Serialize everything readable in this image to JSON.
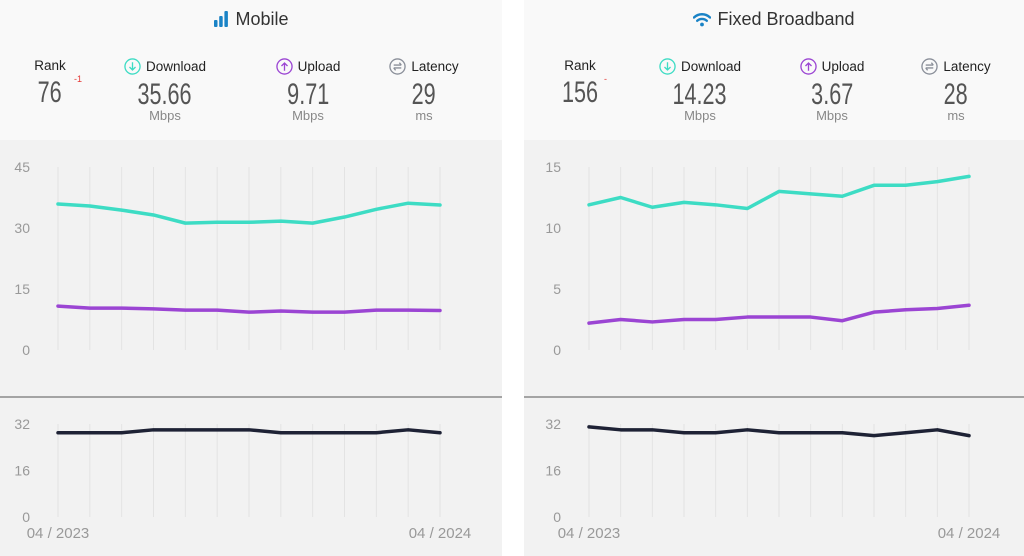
{
  "colors": {
    "download": "#3ddcc4",
    "upload": "#9b45d3",
    "latency": "#1e2235",
    "icon_blue": "#1a83c6",
    "rank_change": "#e53935"
  },
  "panels": [
    {
      "title": "Mobile",
      "icon": "signal-bars-icon",
      "rank": {
        "label": "Rank",
        "value": "76",
        "change": "-1"
      },
      "download": {
        "label": "Download",
        "value": "35.66",
        "unit": "Mbps"
      },
      "upload": {
        "label": "Upload",
        "value": "9.71",
        "unit": "Mbps"
      },
      "latency": {
        "label": "Latency",
        "value": "29",
        "unit": "ms"
      }
    },
    {
      "title": "Fixed Broadband",
      "icon": "wifi-icon",
      "rank": {
        "label": "Rank",
        "value": "156",
        "change": "-"
      },
      "download": {
        "label": "Download",
        "value": "14.23",
        "unit": "Mbps"
      },
      "upload": {
        "label": "Upload",
        "value": "3.67",
        "unit": "Mbps"
      },
      "latency": {
        "label": "Latency",
        "value": "28",
        "unit": "ms"
      }
    }
  ],
  "chart_data": [
    {
      "type": "line",
      "panel": "Mobile",
      "x_labels": [
        "04 / 2023",
        "04 / 2024"
      ],
      "points": 13,
      "speed": {
        "ylim": [
          0,
          45
        ],
        "yticks": [
          "0",
          "15",
          "30",
          "45"
        ],
        "series": [
          {
            "key": "download",
            "values": [
              35.9,
              35.4,
              34.4,
              33.2,
              31.2,
              31.4,
              31.4,
              31.7,
              31.2,
              32.7,
              34.6,
              36.1,
              35.66
            ]
          },
          {
            "key": "upload",
            "values": [
              10.8,
              10.3,
              10.3,
              10.1,
              9.8,
              9.8,
              9.3,
              9.6,
              9.3,
              9.3,
              9.8,
              9.8,
              9.71
            ]
          }
        ]
      },
      "latency": {
        "ylim": [
          0,
          32
        ],
        "yticks": [
          "0",
          "16",
          "32"
        ],
        "series": [
          {
            "key": "latency",
            "values": [
              29,
              29,
              29,
              30,
              30,
              30,
              30,
              29,
              29,
              29,
              29,
              30,
              29
            ]
          }
        ]
      }
    },
    {
      "type": "line",
      "panel": "Fixed Broadband",
      "x_labels": [
        "04 / 2023",
        "04 / 2024"
      ],
      "points": 13,
      "speed": {
        "ylim": [
          0,
          15
        ],
        "yticks": [
          "0",
          "5",
          "10",
          "15"
        ],
        "series": [
          {
            "key": "download",
            "values": [
              11.9,
              12.5,
              11.7,
              12.1,
              11.9,
              11.6,
              13.0,
              12.8,
              12.6,
              13.5,
              13.5,
              13.8,
              14.23
            ]
          },
          {
            "key": "upload",
            "values": [
              2.2,
              2.5,
              2.3,
              2.5,
              2.5,
              2.7,
              2.7,
              2.7,
              2.4,
              3.1,
              3.3,
              3.4,
              3.67
            ]
          }
        ]
      },
      "latency": {
        "ylim": [
          0,
          32
        ],
        "yticks": [
          "0",
          "16",
          "32"
        ],
        "series": [
          {
            "key": "latency",
            "values": [
              31,
              30,
              30,
              29,
              29,
              30,
              29,
              29,
              29,
              28,
              29,
              30,
              28
            ]
          }
        ]
      }
    }
  ]
}
